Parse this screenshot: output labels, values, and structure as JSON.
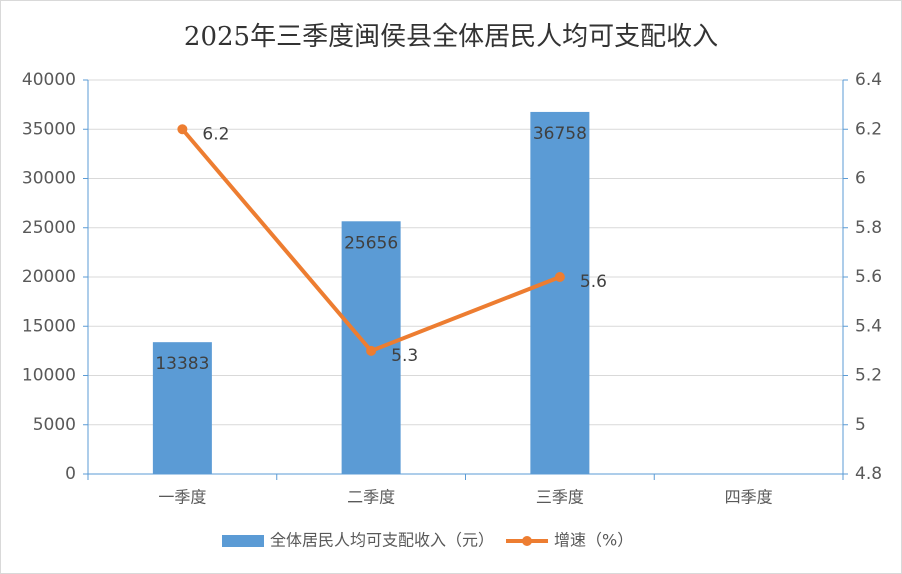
{
  "chart_data": {
    "type": "bar-line",
    "title": "2025年三季度闽侯县全体居民人均可支配收入",
    "categories": [
      "一季度",
      "二季度",
      "三季度",
      "四季度"
    ],
    "series": [
      {
        "name": "全体居民人均可支配收入（元）",
        "type": "bar",
        "color": "#5b9bd5",
        "values": [
          13383,
          25656,
          36758,
          null
        ]
      },
      {
        "name": "增速（%）",
        "type": "line",
        "axis": "y2",
        "color": "#ed7d31",
        "values": [
          6.2,
          5.3,
          5.6,
          null
        ]
      }
    ],
    "ylim": [
      0,
      40000
    ],
    "yticks": [
      0,
      5000,
      10000,
      15000,
      20000,
      25000,
      30000,
      35000,
      40000
    ],
    "y2lim": [
      4.8,
      6.4
    ],
    "y2ticks": [
      4.8,
      5,
      5.2,
      5.4,
      5.6,
      5.8,
      6,
      6.2,
      6.4
    ],
    "grid": true,
    "legend": "bottom"
  }
}
